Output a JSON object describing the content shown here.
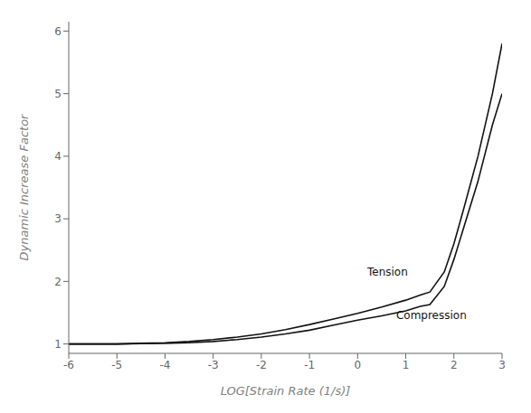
{
  "chart_data": {
    "type": "line",
    "xlabel": "LOG[Strain Rate (1/s)]",
    "ylabel": "Dynamic Increase Factor",
    "x": [
      -6.0,
      -5.5,
      -5.0,
      -4.5,
      -4.0,
      -3.5,
      -3.0,
      -2.5,
      -2.0,
      -1.5,
      -1.0,
      -0.5,
      0.0,
      0.5,
      1.0,
      1.3,
      1.5,
      1.8,
      2.0,
      2.2,
      2.5,
      2.8,
      3.0
    ],
    "series": [
      {
        "color": "#111111",
        "values": [
          1.0,
          1.0,
          1.0,
          1.01,
          1.02,
          1.04,
          1.07,
          1.11,
          1.16,
          1.23,
          1.31,
          1.4,
          1.49,
          1.59,
          1.7,
          1.78,
          1.83,
          2.15,
          2.6,
          3.15,
          4.0,
          5.0,
          5.8
        ]
      },
      {
        "color": "#111111",
        "values": [
          1.0,
          1.0,
          1.0,
          1.005,
          1.01,
          1.02,
          1.04,
          1.07,
          1.11,
          1.16,
          1.22,
          1.3,
          1.38,
          1.45,
          1.53,
          1.6,
          1.63,
          1.92,
          2.35,
          2.85,
          3.6,
          4.5,
          5.0
        ]
      }
    ],
    "xlim": [
      -6,
      3
    ],
    "ylim": [
      0.85,
      6.15
    ],
    "xticks": [
      -6,
      -5,
      -4,
      -3,
      -2,
      -1,
      0,
      1,
      2,
      3
    ],
    "yticks": [
      1,
      2,
      3,
      4,
      5,
      6
    ],
    "grid": false,
    "annotations": [
      {
        "text": "Tension",
        "x": 0.2,
        "y": 2.05,
        "color": "#111111"
      },
      {
        "text": "Compression",
        "x": 0.8,
        "y": 1.57,
        "color": "#111111"
      }
    ]
  }
}
